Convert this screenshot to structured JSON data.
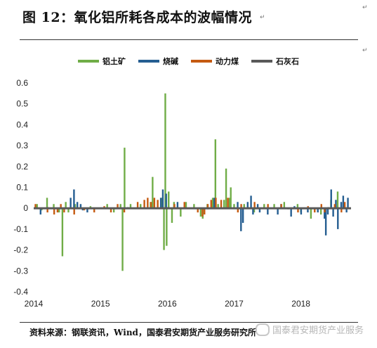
{
  "document": {
    "title": "图 12：氧化铝所耗各成本的波幅情况",
    "source": "资料来源：钢联资讯，Wind，国泰君安期货产业服务研究所",
    "watermark": "国泰君安期货产业服务"
  },
  "chart_data": {
    "type": "bar",
    "title": "",
    "xlabel": "",
    "ylabel": "",
    "ylim": [
      -0.4,
      0.6
    ],
    "yticks": [
      "0.6",
      "0.5",
      "0.4",
      "0.3",
      "0.2",
      "0.1",
      "0",
      "-0.1",
      "-0.2",
      "-0.3",
      "-0.4"
    ],
    "xlim": [
      2014.0,
      2018.75
    ],
    "xticks": [
      "2014",
      "2015",
      "2016",
      "2017",
      "2018"
    ],
    "legend_position": "top",
    "grid": false,
    "series": [
      {
        "name": "铝土矿",
        "color": "#70ad47",
        "points": [
          [
            2014.05,
            0.02
          ],
          [
            2014.12,
            -0.01
          ],
          [
            2014.2,
            0.05
          ],
          [
            2014.3,
            0.02
          ],
          [
            2014.38,
            -0.02
          ],
          [
            2014.43,
            -0.23
          ],
          [
            2014.48,
            0.03
          ],
          [
            2014.52,
            -0.02
          ],
          [
            2014.62,
            0.02
          ],
          [
            2014.85,
            0.01
          ],
          [
            2015.1,
            0.02
          ],
          [
            2015.2,
            -0.02
          ],
          [
            2015.3,
            0.02
          ],
          [
            2015.33,
            -0.3
          ],
          [
            2015.36,
            0.29
          ],
          [
            2015.45,
            0.02
          ],
          [
            2015.6,
            0.02
          ],
          [
            2015.75,
            0.03
          ],
          [
            2015.78,
            0.15
          ],
          [
            2015.92,
            0.05
          ],
          [
            2015.95,
            -0.2
          ],
          [
            2015.97,
            0.55
          ],
          [
            2015.99,
            -0.18
          ],
          [
            2016.02,
            0.08
          ],
          [
            2016.07,
            -0.07
          ],
          [
            2016.1,
            0.03
          ],
          [
            2016.2,
            -0.04
          ],
          [
            2016.28,
            0.03
          ],
          [
            2016.4,
            0.02
          ],
          [
            2016.5,
            -0.04
          ],
          [
            2016.53,
            -0.05
          ],
          [
            2016.6,
            0.02
          ],
          [
            2016.68,
            0.05
          ],
          [
            2016.72,
            0.33
          ],
          [
            2016.76,
            0.02
          ],
          [
            2016.85,
            0.04
          ],
          [
            2016.88,
            0.19
          ],
          [
            2016.93,
            0.05
          ],
          [
            2016.95,
            0.1
          ],
          [
            2017.0,
            0.02
          ],
          [
            2017.15,
            0.02
          ],
          [
            2017.3,
            -0.02
          ],
          [
            2017.45,
            0.02
          ],
          [
            2017.6,
            0.02
          ],
          [
            2017.75,
            0.03
          ],
          [
            2017.95,
            0.02
          ],
          [
            2018.0,
            -0.02
          ],
          [
            2018.15,
            -0.05
          ],
          [
            2018.3,
            -0.03
          ],
          [
            2018.45,
            0.04
          ],
          [
            2018.55,
            0.08
          ],
          [
            2018.65,
            0.02
          ]
        ]
      },
      {
        "name": "烧碱",
        "color": "#255e91",
        "points": [
          [
            2014.1,
            -0.03
          ],
          [
            2014.55,
            0.05
          ],
          [
            2014.6,
            0.09
          ],
          [
            2014.65,
            0.03
          ],
          [
            2014.7,
            0.02
          ],
          [
            2014.73,
            -0.01
          ],
          [
            2014.8,
            -0.02
          ],
          [
            2015.9,
            0.05
          ],
          [
            2015.93,
            0.09
          ],
          [
            2015.98,
            0.07
          ],
          [
            2016.15,
            0.03
          ],
          [
            2016.7,
            0.05
          ],
          [
            2017.05,
            0.03
          ],
          [
            2017.1,
            -0.11
          ],
          [
            2017.13,
            -0.07
          ],
          [
            2017.2,
            0.03
          ],
          [
            2017.25,
            0.06
          ],
          [
            2017.28,
            -0.03
          ],
          [
            2017.35,
            0.02
          ],
          [
            2017.38,
            -0.02
          ],
          [
            2017.5,
            -0.03
          ],
          [
            2017.65,
            -0.03
          ],
          [
            2017.7,
            0.02
          ],
          [
            2017.85,
            -0.04
          ],
          [
            2017.9,
            0.01
          ],
          [
            2018.0,
            -0.03
          ],
          [
            2018.1,
            -0.02
          ],
          [
            2018.25,
            -0.02
          ],
          [
            2018.35,
            -0.05
          ],
          [
            2018.37,
            -0.13
          ],
          [
            2018.4,
            -0.03
          ],
          [
            2018.45,
            0.09
          ],
          [
            2018.48,
            -0.04
          ],
          [
            2018.52,
            0.04
          ],
          [
            2018.55,
            -0.1
          ],
          [
            2018.6,
            0.03
          ],
          [
            2018.63,
            0.06
          ],
          [
            2018.68,
            -0.02
          ],
          [
            2018.7,
            0.05
          ]
        ]
      },
      {
        "name": "动力煤",
        "color": "#c55a11",
        "points": [
          [
            2014.02,
            0.02
          ],
          [
            2014.2,
            -0.02
          ],
          [
            2014.3,
            -0.03
          ],
          [
            2014.35,
            -0.02
          ],
          [
            2014.4,
            0.02
          ],
          [
            2014.45,
            -0.02
          ],
          [
            2014.6,
            -0.03
          ],
          [
            2014.75,
            -0.01
          ],
          [
            2014.9,
            -0.02
          ],
          [
            2015.05,
            0.01
          ],
          [
            2015.15,
            -0.02
          ],
          [
            2015.25,
            0.02
          ],
          [
            2015.35,
            -0.02
          ],
          [
            2015.55,
            0.03
          ],
          [
            2015.65,
            0.04
          ],
          [
            2015.7,
            0.05
          ],
          [
            2015.75,
            0.03
          ],
          [
            2015.8,
            0.05
          ],
          [
            2015.85,
            0.04
          ],
          [
            2016.1,
            0.02
          ],
          [
            2016.25,
            0.03
          ],
          [
            2016.45,
            -0.02
          ],
          [
            2016.52,
            -0.04
          ],
          [
            2016.55,
            -0.03
          ],
          [
            2016.6,
            0.02
          ],
          [
            2016.65,
            0.04
          ],
          [
            2016.72,
            0.05
          ],
          [
            2016.8,
            0.04
          ],
          [
            2016.9,
            0.05
          ],
          [
            2017.05,
            -0.02
          ],
          [
            2017.1,
            0.02
          ],
          [
            2017.3,
            0.03
          ],
          [
            2017.5,
            0.02
          ],
          [
            2017.7,
            0.02
          ],
          [
            2017.95,
            -0.02
          ],
          [
            2018.1,
            0.01
          ],
          [
            2018.2,
            -0.02
          ],
          [
            2018.3,
            0.02
          ],
          [
            2018.35,
            -0.02
          ],
          [
            2018.5,
            0.02
          ],
          [
            2018.6,
            -0.02
          ],
          [
            2018.65,
            0.03
          ]
        ]
      },
      {
        "name": "石灰石",
        "color": "#595959",
        "points": [
          [
            2014.2,
            0.005
          ],
          [
            2014.8,
            -0.005
          ],
          [
            2015.4,
            0.005
          ],
          [
            2016.0,
            0.005
          ],
          [
            2016.6,
            -0.005
          ],
          [
            2017.2,
            0.005
          ],
          [
            2017.8,
            -0.005
          ],
          [
            2018.4,
            0.005
          ]
        ]
      }
    ]
  }
}
